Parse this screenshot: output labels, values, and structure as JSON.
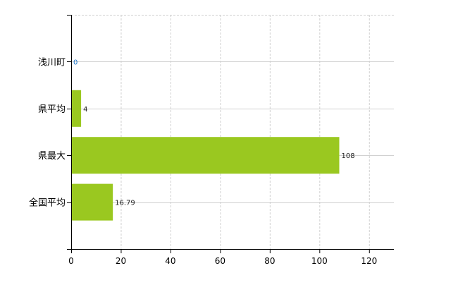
{
  "chart_data": {
    "type": "bar",
    "orientation": "horizontal",
    "title": "",
    "xlabel": "",
    "ylabel": "",
    "categories": [
      "浅川町",
      "県平均",
      "県最大",
      "全国平均"
    ],
    "values": [
      0,
      4,
      108,
      16.79
    ],
    "value_labels": [
      "0",
      "4",
      "108",
      "16.79"
    ],
    "xlim": [
      0,
      130
    ],
    "xticks": [
      0,
      20,
      40,
      60,
      80,
      100,
      120
    ],
    "grid": true,
    "legend": "none",
    "colors": {
      "bar": "#9ac820",
      "grid": "#d0d0d0",
      "axis": "#000000",
      "label_zero": "#1a73c8"
    }
  }
}
